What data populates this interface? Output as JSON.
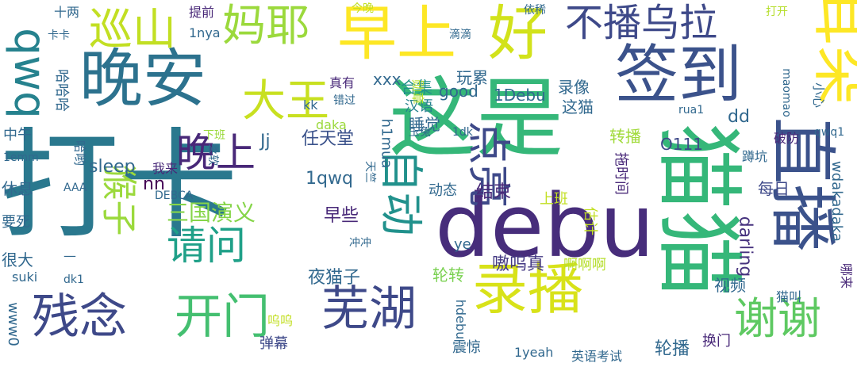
{
  "word_cloud": {
    "words": [
      {
        "text": "打卡",
        "color": "#2a788e"
      },
      {
        "text": "这是",
        "color": "#35b779"
      },
      {
        "text": "debu",
        "color": "#472d7b"
      },
      {
        "text": "签到",
        "color": "#3b528b"
      },
      {
        "text": "晚安",
        "color": "#2c728e"
      },
      {
        "text": "早上",
        "color": "#fde725"
      },
      {
        "text": "好",
        "color": "#d2e21b"
      },
      {
        "text": "录播",
        "color": "#d8e219"
      },
      {
        "text": "猫猫",
        "color": "#35b779"
      },
      {
        "text": "直播",
        "color": "#3b528b"
      },
      {
        "text": "残念",
        "color": "#3e4989"
      },
      {
        "text": "开门",
        "color": "#44bf70"
      },
      {
        "text": "芜湖",
        "color": "#3e4989"
      },
      {
        "text": "谢谢",
        "color": "#5ec962"
      },
      {
        "text": "巡山",
        "color": "#c2df23"
      },
      {
        "text": "妈耶",
        "color": "#9bd93c"
      },
      {
        "text": "不播乌拉",
        "color": "#3e4989"
      },
      {
        "text": "耳朵",
        "color": "#fde725"
      },
      {
        "text": "qwq",
        "color": "#26828e"
      },
      {
        "text": "大王",
        "color": "#c8e020"
      },
      {
        "text": "自动",
        "color": "#21918c"
      },
      {
        "text": "点亮",
        "color": "#3e4989"
      },
      {
        "text": "晚上",
        "color": "#482878"
      },
      {
        "text": "请问",
        "color": "#1fa088"
      },
      {
        "text": "猴子",
        "color": "#9bd93c"
      },
      {
        "text": "三国演义",
        "color": "#86d549"
      },
      {
        "text": "任天堂",
        "color": "#3b528b"
      },
      {
        "text": "1qwq",
        "color": "#31688e"
      },
      {
        "text": "sleep",
        "color": "#31688e"
      },
      {
        "text": "Jj",
        "color": "#31688e"
      },
      {
        "text": "nn",
        "color": "#440154"
      },
      {
        "text": "早些",
        "color": "#482878"
      },
      {
        "text": "结束",
        "color": "#482878"
      },
      {
        "text": "动态",
        "color": "#31688e"
      },
      {
        "text": "夜猫子",
        "color": "#31688e"
      },
      {
        "text": "嗷呜真",
        "color": "#443983"
      },
      {
        "text": "轮转",
        "color": "#7ad151"
      },
      {
        "text": "睡觉",
        "color": "#31688e"
      },
      {
        "text": "玩累",
        "color": "#31688e"
      },
      {
        "text": "合集",
        "color": "#21918c"
      },
      {
        "text": "汉语",
        "color": "#26828e"
      },
      {
        "text": "录像",
        "color": "#31688e"
      },
      {
        "text": "勋章",
        "color": "#b5de2b"
      },
      {
        "text": "good",
        "color": "#31688e"
      },
      {
        "text": "xxx",
        "color": "#31688e"
      },
      {
        "text": "1Debu",
        "color": "#31688e"
      },
      {
        "text": "这猫",
        "color": "#31688e"
      },
      {
        "text": "转播",
        "color": "#a0da39"
      },
      {
        "text": "O111",
        "color": "#3e4989"
      },
      {
        "text": "dd",
        "color": "#31688e"
      },
      {
        "text": "每日",
        "color": "#3e4989"
      },
      {
        "text": "darling",
        "color": "#46327e"
      },
      {
        "text": "wdakadaka",
        "color": "#31688e"
      },
      {
        "text": "视频",
        "color": "#31688e"
      },
      {
        "text": "轮播",
        "color": "#31688e"
      },
      {
        "text": "换门",
        "color": "#482878"
      },
      {
        "text": "英语考试",
        "color": "#31688e"
      },
      {
        "text": "1yeah",
        "color": "#31688e"
      },
      {
        "text": "震惊",
        "color": "#31688e"
      },
      {
        "text": "hdebu",
        "color": "#31688e"
      },
      {
        "text": "弹幕",
        "color": "#3e4989"
      },
      {
        "text": "呜呜",
        "color": "#c2df23"
      },
      {
        "text": "www0",
        "color": "#31688e"
      },
      {
        "text": "suki",
        "color": "#31688e"
      },
      {
        "text": "很大",
        "color": "#31688e"
      },
      {
        "text": "要死",
        "color": "#31688e"
      },
      {
        "text": "休息",
        "color": "#31688e"
      },
      {
        "text": "中午",
        "color": "#31688e"
      },
      {
        "text": "1emm",
        "color": "#31688e"
      },
      {
        "text": "哈哈哈",
        "color": "#31688e"
      },
      {
        "text": "卡卡",
        "color": "#31688e"
      },
      {
        "text": "十两",
        "color": "#31688e"
      },
      {
        "text": "提前",
        "color": "#482878"
      },
      {
        "text": "1nya",
        "color": "#31688e"
      },
      {
        "text": "今晚",
        "color": "#c2df23"
      },
      {
        "text": "滴滴",
        "color": "#31688e"
      },
      {
        "text": "依稀",
        "color": "#31688e"
      },
      {
        "text": "打开",
        "color": "#b5de2b"
      },
      {
        "text": "玉兔",
        "color": "#31688e"
      },
      {
        "text": "真有",
        "color": "#482878"
      },
      {
        "text": "错过",
        "color": "#31688e"
      },
      {
        "text": "kk",
        "color": "#31688e"
      },
      {
        "text": "h1mua",
        "color": "#31688e"
      },
      {
        "text": "天竺",
        "color": "#31688e"
      },
      {
        "text": "我来",
        "color": "#482878"
      },
      {
        "text": "下班",
        "color": "#9bd93c"
      },
      {
        "text": "哈哟",
        "color": "#31688e"
      },
      {
        "text": "柔软",
        "color": "#31688e"
      },
      {
        "text": "AAA",
        "color": "#31688e"
      },
      {
        "text": "DEBCA",
        "color": "#31688e"
      },
      {
        "text": "—",
        "color": "#31688e"
      },
      {
        "text": "dk1",
        "color": "#31688e"
      },
      {
        "text": "ye",
        "color": "#31688e"
      },
      {
        "text": "冲冲",
        "color": "#31688e"
      },
      {
        "text": "上班",
        "color": "#c2df23"
      },
      {
        "text": "估计",
        "color": "#c2df23"
      },
      {
        "text": "拖时间",
        "color": "#482878"
      },
      {
        "text": "1dk",
        "color": "#31688e"
      },
      {
        "text": "daka",
        "color": "#9bd93c"
      },
      {
        "text": "rua1",
        "color": "#31688e"
      },
      {
        "text": "maomao",
        "color": "#31688e"
      },
      {
        "text": "小心",
        "color": "#31688e"
      },
      {
        "text": "破防",
        "color": "#482878"
      },
      {
        "text": "qwq1",
        "color": "#31688e"
      },
      {
        "text": "蹲坑",
        "color": "#31688e"
      },
      {
        "text": "啊啊啊",
        "color": "#b5de2b"
      },
      {
        "text": "猫叫",
        "color": "#31688e"
      },
      {
        "text": "哪来",
        "color": "#482878"
      }
    ]
  }
}
